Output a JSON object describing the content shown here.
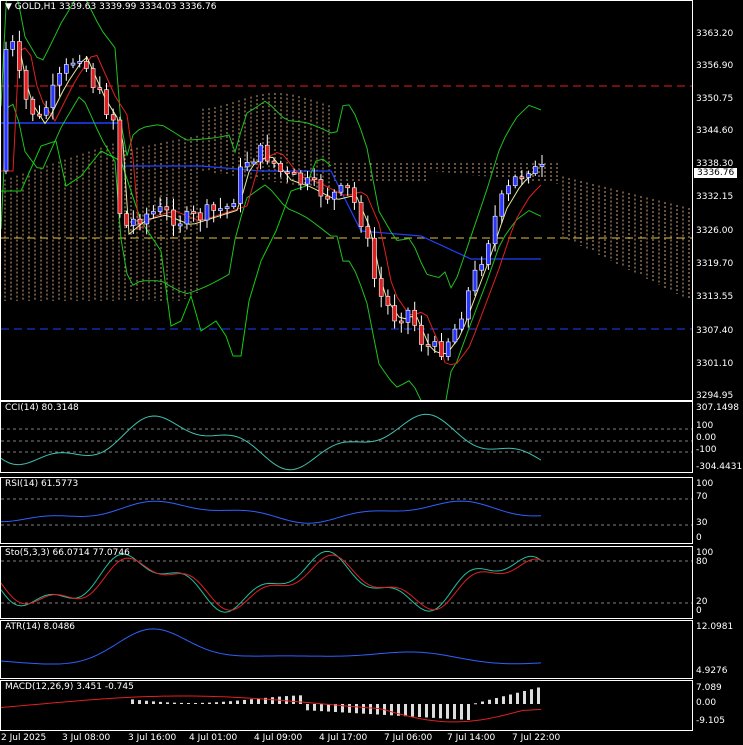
{
  "main": {
    "title": "GOLD,H1  3339.63 3339.99 3334.03 3336.76",
    "price_ticks": [
      "3363.20",
      "3356.90",
      "3350.75",
      "3344.60",
      "3338.30",
      "3332.15",
      "3326.00",
      "3319.70",
      "3313.55",
      "3307.40",
      "3301.10",
      "3294.95"
    ],
    "current_price": "3336.76"
  },
  "cci": {
    "title": "CCI(14) 80.3148",
    "ticks": [
      "307.1498",
      "100",
      "0.00",
      "-100",
      "-304.4431"
    ]
  },
  "rsi": {
    "title": "RSI(14) 61.5773",
    "ticks": [
      "100",
      "70",
      "30",
      "0"
    ]
  },
  "sto": {
    "title": "Sto(5,3,3) 66.0714 77.0746",
    "ticks": [
      "100",
      "80",
      "20",
      "0"
    ]
  },
  "atr": {
    "title": "ATR(14) 8.0486",
    "ticks": [
      "12.0981",
      "4.9276"
    ]
  },
  "macd": {
    "title": "MACD(12,26,9) 3.451 -0.745",
    "ticks": [
      "7.089",
      "0.00",
      "-9.105"
    ]
  },
  "time_axis": [
    "2 Jul 2025",
    "3 Jul 08:00",
    "3 Jul 16:00",
    "4 Jul 01:00",
    "4 Jul 09:00",
    "4 Jul 17:00",
    "7 Jul 06:00",
    "7 Jul 14:00",
    "7 Jul 22:00"
  ],
  "colors": {
    "bull": "#2a36ff",
    "bear": "#e02020",
    "ichimoku": "#f0c090",
    "green": "#20c020",
    "cyan": "#40d0c0",
    "blue": "#4070ff"
  }
}
